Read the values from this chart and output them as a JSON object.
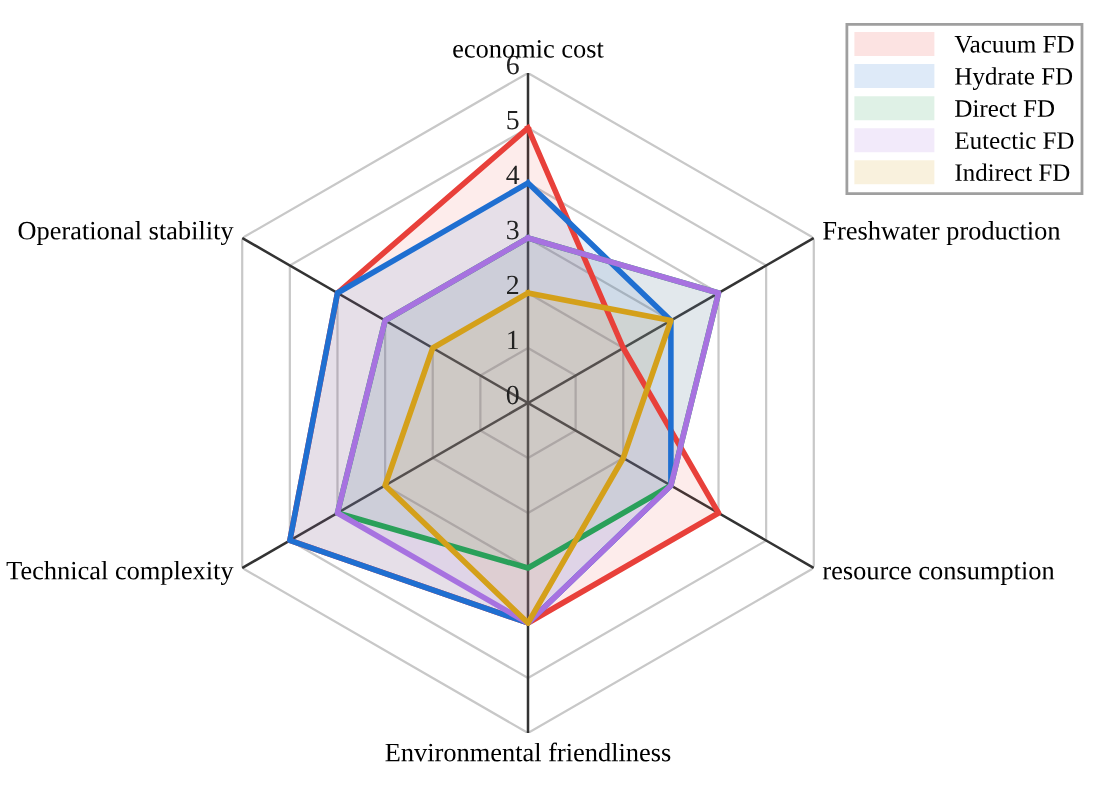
{
  "chart_data": {
    "type": "radar",
    "categories": [
      "economic cost",
      "Freshwater production",
      "resource consumption",
      "Environmental friendliness",
      "Technical complexity",
      "Operational stability"
    ],
    "series": [
      {
        "name": "Vacuum FD",
        "color": "#e8403a",
        "values": [
          5,
          2,
          4,
          4,
          5,
          4
        ]
      },
      {
        "name": "Hydrate FD",
        "color": "#1f6fd1",
        "values": [
          4,
          3,
          3,
          4,
          5,
          4
        ]
      },
      {
        "name": "Direct FD",
        "color": "#2aa05a",
        "values": [
          3,
          4,
          3,
          3,
          4,
          3
        ]
      },
      {
        "name": "Eutectic FD",
        "color": "#a772e0",
        "values": [
          3,
          4,
          3,
          4,
          4,
          3
        ]
      },
      {
        "name": "Indirect FD",
        "color": "#d4a01a",
        "values": [
          2,
          3,
          2,
          4,
          3,
          2
        ]
      }
    ],
    "ylim": [
      0,
      6
    ],
    "yticks": [
      0,
      1,
      2,
      3,
      4,
      5,
      6
    ],
    "grid": true,
    "legend": "top right"
  }
}
